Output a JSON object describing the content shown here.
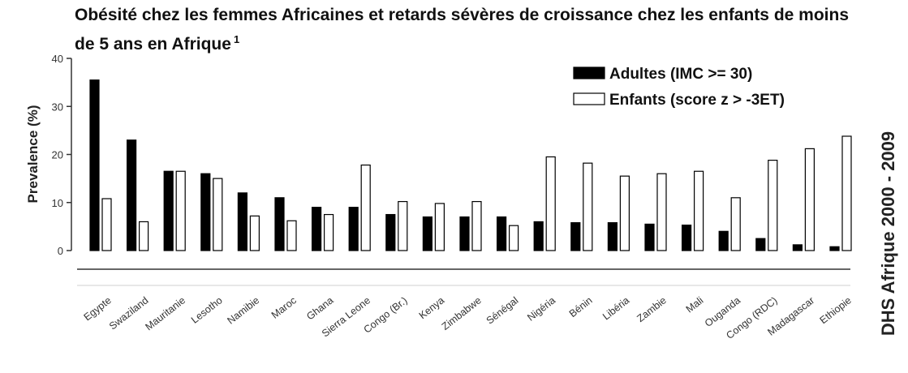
{
  "chart_data": {
    "type": "bar",
    "title": "Obésité chez les femmes Africaines et retards sévères de croissance chez les enfants de moins de 5 ans en Afrique",
    "title_note": "1",
    "side_caption": "DHS Afrique 2000 - 2009",
    "ylabel": "Prevalence (%)",
    "xlabel": "",
    "ylim": [
      0,
      40
    ],
    "yticks": [
      "0",
      "10",
      "20",
      "30",
      "40"
    ],
    "legend_placement": "top-right",
    "grid": false,
    "categories": [
      "Egypte",
      "Swaziland",
      "Mauritanie",
      "Lesotho",
      "Namibie",
      "Maroc",
      "Ghana",
      "Sierra Leone",
      "Congo (Br.)",
      "Kenya",
      "Zimbabwe",
      "Sénégal",
      "Nigéria",
      "Bénin",
      "Libéria",
      "Zambie",
      "Mali",
      "Ouganda",
      "Congo (RDC)",
      "Madagascar",
      "Ethiopie"
    ],
    "series": [
      {
        "name": "Adultes (IMC >= 30)",
        "color": "#000000",
        "values": [
          35.5,
          23,
          16.5,
          16,
          12,
          11,
          9,
          9,
          7.5,
          7,
          7,
          7,
          6,
          5.8,
          5.8,
          5.5,
          5.3,
          4,
          2.5,
          1.2,
          0.8
        ]
      },
      {
        "name": "Enfants (score z > -3ET)",
        "color": "#ffffff",
        "values": [
          10.8,
          6,
          16.5,
          15,
          7.2,
          6.2,
          7.5,
          17.8,
          10.2,
          9.8,
          10.2,
          5.2,
          19.5,
          18.2,
          15.5,
          16,
          16.5,
          11,
          18.8,
          21.2,
          23.8
        ]
      }
    ]
  }
}
